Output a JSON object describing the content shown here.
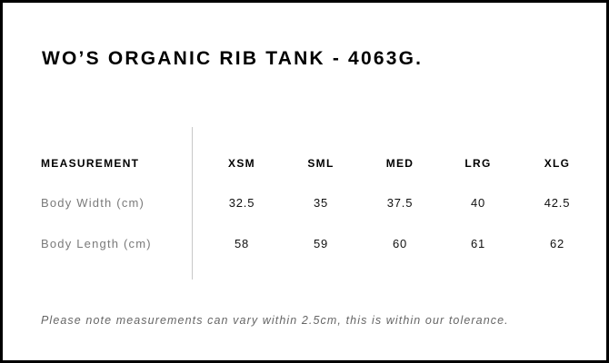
{
  "title": "WO’S ORGANIC RIB TANK - 4063G.",
  "table": {
    "header_label": "MEASUREMENT",
    "sizes": [
      "XSM",
      "SML",
      "MED",
      "LRG",
      "XLG"
    ],
    "rows": [
      {
        "label": "Body Width (cm)",
        "values": [
          "32.5",
          "35",
          "37.5",
          "40",
          "42.5"
        ]
      },
      {
        "label": "Body Length (cm)",
        "values": [
          "58",
          "59",
          "60",
          "61",
          "62"
        ]
      }
    ]
  },
  "note": "Please note measurements can vary within 2.5cm, this is within our tolerance."
}
